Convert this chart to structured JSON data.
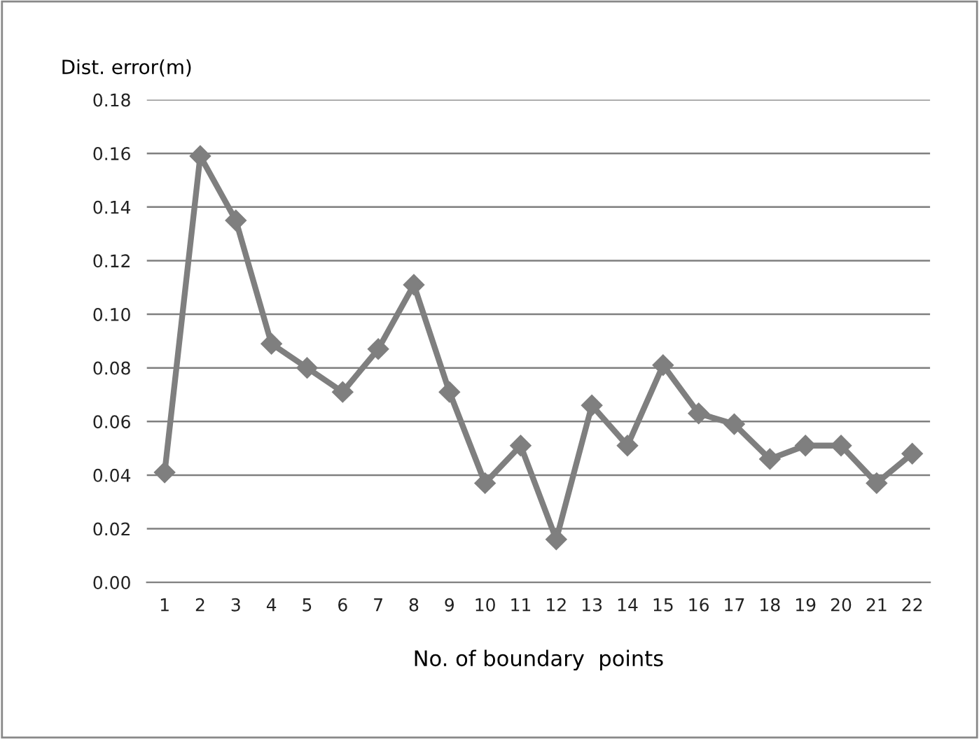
{
  "chart_data": {
    "type": "line",
    "xlabel": "No. of boundary  points",
    "ylabel": "Dist. error(m)",
    "categories": [
      "1",
      "2",
      "3",
      "4",
      "5",
      "6",
      "7",
      "8",
      "9",
      "10",
      "11",
      "12",
      "13",
      "14",
      "15",
      "16",
      "17",
      "18",
      "19",
      "20",
      "21",
      "22"
    ],
    "series": [
      {
        "color": "#7f7f7f",
        "values": [
          0.041,
          0.159,
          0.135,
          0.089,
          0.08,
          0.071,
          0.087,
          0.111,
          0.071,
          0.037,
          0.051,
          0.016,
          0.066,
          0.051,
          0.081,
          0.063,
          0.059,
          0.046,
          0.051,
          0.051,
          0.037,
          0.048
        ]
      }
    ],
    "ylim": [
      0,
      0.18
    ],
    "yticks": [
      {
        "value": 0,
        "label": "0.00"
      },
      {
        "value": 0.02,
        "label": "0.02"
      },
      {
        "value": 0.04,
        "label": "0.04"
      },
      {
        "value": 0.06,
        "label": "0.06"
      },
      {
        "value": 0.08,
        "label": "0.08"
      },
      {
        "value": 0.1,
        "label": "0.10"
      },
      {
        "value": 0.12,
        "label": "0.12"
      },
      {
        "value": 0.14,
        "label": "0.14"
      },
      {
        "value": 0.16,
        "label": "0.16"
      },
      {
        "value": 0.18,
        "label": "0.18"
      }
    ],
    "grid": "y",
    "marker": "diamond",
    "line_style": "solid"
  }
}
